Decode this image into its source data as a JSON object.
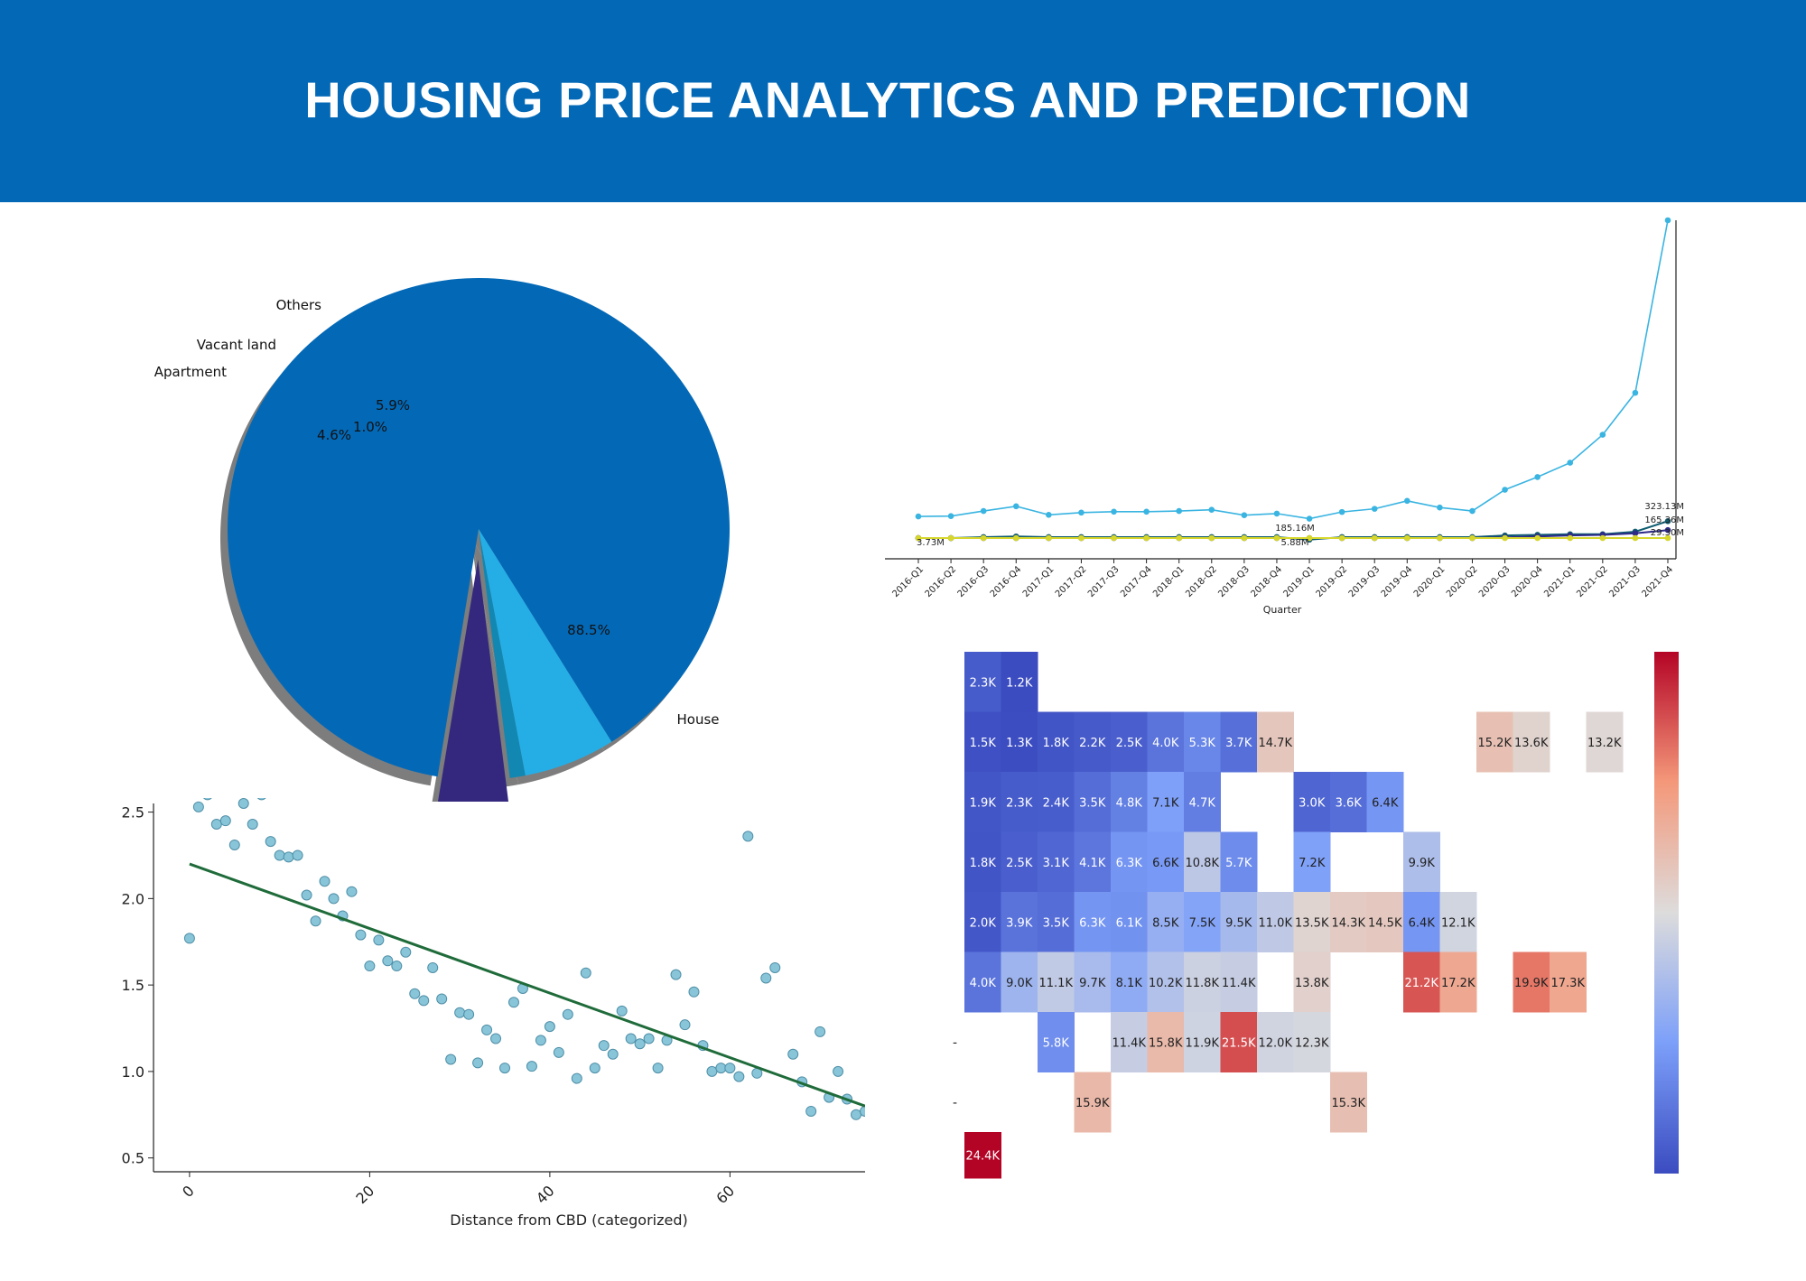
{
  "header": {
    "title": "HOUSING PRICE ANALYTICS AND PREDICTION"
  },
  "colors": {
    "banner": "#0369b7"
  },
  "chart_data": [
    {
      "type": "pie",
      "labels": [
        "House",
        "Apartment",
        "Vacant land",
        "Others"
      ],
      "values": [
        88.5,
        4.6,
        1.0,
        5.9
      ],
      "pct_labels": [
        "88.5%",
        "4.6%",
        "1.0%",
        "5.9%"
      ],
      "colors": [
        "#0369b7",
        "#33287e",
        "#1287b2",
        "#25aee6"
      ],
      "exploded": "Apartment",
      "shadow": true
    },
    {
      "type": "line",
      "x": [
        "2016-Q1",
        "2016-Q2",
        "2016-Q3",
        "2016-Q4",
        "2017-Q1",
        "2017-Q2",
        "2017-Q3",
        "2017-Q4",
        "2018-Q1",
        "2018-Q2",
        "2018-Q3",
        "2018-Q4",
        "2019-Q1",
        "2019-Q2",
        "2019-Q3",
        "2019-Q4",
        "2020-Q1",
        "2020-Q2",
        "2020-Q3",
        "2020-Q4",
        "2021-Q1",
        "2021-Q2",
        "2021-Q3",
        "2021-Q4"
      ],
      "xlabel": "Quarter",
      "series": [
        {
          "color": "#3ab4e1",
          "values": [
            68,
            69,
            85,
            100,
            73,
            80,
            83,
            83,
            85,
            89,
            72,
            77,
            61,
            82,
            92,
            117,
            96,
            85,
            152,
            192,
            237,
            325,
            457,
            1000
          ]
        },
        {
          "color": "#0e5b70",
          "values": [
            0,
            0,
            3,
            5,
            3,
            3,
            3,
            3,
            3,
            3,
            3,
            3,
            -5,
            3,
            3,
            3,
            3,
            3,
            8,
            10,
            12,
            12,
            20,
            53
          ]
        },
        {
          "color": "#2e2a88",
          "values": [
            0,
            0,
            0,
            0,
            0,
            0,
            0,
            0,
            0,
            0,
            0,
            0,
            0,
            0,
            0,
            0,
            0,
            0,
            2,
            5,
            8,
            10,
            15,
            25
          ]
        },
        {
          "color": "#d6d62d",
          "values": [
            0,
            0,
            0,
            0,
            0,
            0,
            0,
            0,
            0,
            0,
            0,
            0,
            0,
            0,
            0,
            0,
            0,
            0,
            0,
            0,
            0,
            0,
            0,
            0
          ]
        }
      ],
      "annotations": [
        "3.73M",
        "185.16M",
        "5.88M",
        "323.13M",
        "165.36M",
        "29.30M"
      ]
    },
    {
      "type": "scatter",
      "xlabel": "Distance from CBD (categorized)",
      "ylabel": "",
      "xticks": [
        0,
        20,
        40,
        60
      ],
      "yticks": [
        0.5,
        1.0,
        1.5,
        2.0,
        2.5
      ],
      "ytick_labels": [
        "0.5",
        "1.0",
        "1.5",
        "2.0",
        "2.5"
      ],
      "xlim": [
        -4,
        75
      ],
      "ylim": [
        0.42,
        2.55
      ],
      "points": [
        [
          0,
          1.77
        ],
        [
          1,
          2.53
        ],
        [
          2,
          2.6
        ],
        [
          3,
          2.43
        ],
        [
          4,
          2.45
        ],
        [
          5,
          2.31
        ],
        [
          6,
          2.55
        ],
        [
          7,
          2.43
        ],
        [
          8,
          2.6
        ],
        [
          9,
          2.33
        ],
        [
          10,
          2.25
        ],
        [
          11,
          2.24
        ],
        [
          12,
          2.25
        ],
        [
          13,
          2.02
        ],
        [
          14,
          1.87
        ],
        [
          15,
          2.1
        ],
        [
          16,
          2.0
        ],
        [
          17,
          1.9
        ],
        [
          18,
          2.04
        ],
        [
          19,
          1.79
        ],
        [
          20,
          1.61
        ],
        [
          21,
          1.76
        ],
        [
          22,
          1.64
        ],
        [
          23,
          1.61
        ],
        [
          24,
          1.69
        ],
        [
          25,
          1.45
        ],
        [
          26,
          1.41
        ],
        [
          27,
          1.6
        ],
        [
          28,
          1.42
        ],
        [
          29,
          1.07
        ],
        [
          30,
          1.34
        ],
        [
          31,
          1.33
        ],
        [
          32,
          1.05
        ],
        [
          33,
          1.24
        ],
        [
          34,
          1.19
        ],
        [
          35,
          1.02
        ],
        [
          36,
          1.4
        ],
        [
          37,
          1.48
        ],
        [
          38,
          1.03
        ],
        [
          39,
          1.18
        ],
        [
          40,
          1.26
        ],
        [
          41,
          1.11
        ],
        [
          42,
          1.33
        ],
        [
          43,
          0.96
        ],
        [
          44,
          1.57
        ],
        [
          45,
          1.02
        ],
        [
          46,
          1.15
        ],
        [
          47,
          1.1
        ],
        [
          48,
          1.35
        ],
        [
          49,
          1.19
        ],
        [
          50,
          1.16
        ],
        [
          51,
          1.19
        ],
        [
          52,
          1.02
        ],
        [
          53,
          1.18
        ],
        [
          54,
          1.56
        ],
        [
          55,
          1.27
        ],
        [
          56,
          1.46
        ],
        [
          57,
          1.15
        ],
        [
          58,
          1.0
        ],
        [
          59,
          1.02
        ],
        [
          60,
          1.02
        ],
        [
          61,
          0.97
        ],
        [
          62,
          2.36
        ],
        [
          63,
          0.99
        ],
        [
          64,
          1.54
        ],
        [
          65,
          1.6
        ],
        [
          67,
          1.1
        ],
        [
          68,
          0.94
        ],
        [
          69,
          0.77
        ],
        [
          70,
          1.23
        ],
        [
          71,
          0.85
        ],
        [
          72,
          1.0
        ],
        [
          73,
          0.84
        ],
        [
          74,
          0.75
        ],
        [
          75,
          0.77
        ]
      ],
      "fit": {
        "x": [
          0,
          75
        ],
        "y": [
          2.2,
          0.8
        ]
      },
      "point_color": "#89c5d9",
      "line_color": "#1f6b3a"
    },
    {
      "type": "heatmap",
      "cols": 18,
      "row_labels": [
        "",
        "",
        "",
        "",
        "",
        "",
        "-",
        "-",
        ""
      ],
      "cells": [
        [
          0,
          0,
          2.3,
          "2.3K"
        ],
        [
          0,
          1,
          1.2,
          "1.2K"
        ],
        [
          1,
          0,
          1.5,
          "1.5K"
        ],
        [
          1,
          1,
          1.3,
          "1.3K"
        ],
        [
          1,
          2,
          1.8,
          "1.8K"
        ],
        [
          1,
          3,
          2.2,
          "2.2K"
        ],
        [
          1,
          4,
          2.5,
          "2.5K"
        ],
        [
          1,
          5,
          4.0,
          "4.0K"
        ],
        [
          1,
          6,
          5.3,
          "5.3K"
        ],
        [
          1,
          7,
          3.7,
          "3.7K"
        ],
        [
          1,
          8,
          14.7,
          "14.7K"
        ],
        [
          1,
          14,
          15.2,
          "15.2K"
        ],
        [
          1,
          15,
          13.6,
          "13.6K"
        ],
        [
          1,
          17,
          13.2,
          "13.2K"
        ],
        [
          2,
          0,
          1.9,
          "1.9K"
        ],
        [
          2,
          1,
          2.3,
          "2.3K"
        ],
        [
          2,
          2,
          2.4,
          "2.4K"
        ],
        [
          2,
          3,
          3.5,
          "3.5K"
        ],
        [
          2,
          4,
          4.8,
          "4.8K"
        ],
        [
          2,
          5,
          7.1,
          "7.1K"
        ],
        [
          2,
          6,
          4.7,
          "4.7K"
        ],
        [
          2,
          9,
          3.0,
          "3.0K"
        ],
        [
          2,
          10,
          3.6,
          "3.6K"
        ],
        [
          2,
          11,
          6.4,
          "6.4K"
        ],
        [
          3,
          0,
          1.8,
          "1.8K"
        ],
        [
          3,
          1,
          2.5,
          "2.5K"
        ],
        [
          3,
          2,
          3.1,
          "3.1K"
        ],
        [
          3,
          3,
          4.1,
          "4.1K"
        ],
        [
          3,
          4,
          6.3,
          "6.3K"
        ],
        [
          3,
          5,
          6.6,
          "6.6K"
        ],
        [
          3,
          6,
          10.8,
          "10.8K"
        ],
        [
          3,
          7,
          5.7,
          "5.7K"
        ],
        [
          3,
          9,
          7.2,
          "7.2K"
        ],
        [
          3,
          12,
          9.9,
          "9.9K"
        ],
        [
          4,
          0,
          2.0,
          "2.0K"
        ],
        [
          4,
          1,
          3.9,
          "3.9K"
        ],
        [
          4,
          2,
          3.5,
          "3.5K"
        ],
        [
          4,
          3,
          6.3,
          "6.3K"
        ],
        [
          4,
          4,
          6.1,
          "6.1K"
        ],
        [
          4,
          5,
          8.5,
          "8.5K"
        ],
        [
          4,
          6,
          7.5,
          "7.5K"
        ],
        [
          4,
          7,
          9.5,
          "9.5K"
        ],
        [
          4,
          8,
          11.0,
          "11.0K"
        ],
        [
          4,
          9,
          13.5,
          "13.5K"
        ],
        [
          4,
          10,
          14.3,
          "14.3K"
        ],
        [
          4,
          11,
          14.5,
          "14.5K"
        ],
        [
          4,
          12,
          6.4,
          "6.4K"
        ],
        [
          4,
          13,
          12.1,
          "12.1K"
        ],
        [
          5,
          0,
          4.0,
          "4.0K"
        ],
        [
          5,
          1,
          9.0,
          "9.0K"
        ],
        [
          5,
          2,
          11.1,
          "11.1K"
        ],
        [
          5,
          3,
          9.7,
          "9.7K"
        ],
        [
          5,
          4,
          8.1,
          "8.1K"
        ],
        [
          5,
          5,
          10.2,
          "10.2K"
        ],
        [
          5,
          6,
          11.8,
          "11.8K"
        ],
        [
          5,
          7,
          11.4,
          "11.4K"
        ],
        [
          5,
          9,
          13.8,
          "13.8K"
        ],
        [
          5,
          12,
          21.2,
          "21.2K"
        ],
        [
          5,
          13,
          17.2,
          "17.2K"
        ],
        [
          5,
          15,
          19.9,
          "19.9K"
        ],
        [
          5,
          16,
          17.3,
          "17.3K"
        ],
        [
          6,
          2,
          5.8,
          "5.8K"
        ],
        [
          6,
          4,
          11.4,
          "11.4K"
        ],
        [
          6,
          5,
          15.8,
          "15.8K"
        ],
        [
          6,
          6,
          11.9,
          "11.9K"
        ],
        [
          6,
          7,
          21.5,
          "21.5K"
        ],
        [
          6,
          8,
          12.0,
          "12.0K"
        ],
        [
          6,
          9,
          12.3,
          "12.3K"
        ],
        [
          7,
          3,
          15.9,
          "15.9K"
        ],
        [
          7,
          10,
          15.3,
          "15.3K"
        ],
        [
          8,
          0,
          24.4,
          "24.4K"
        ]
      ],
      "vmin": 1.2,
      "vmax": 24.4,
      "colormap": "coolwarm"
    }
  ]
}
